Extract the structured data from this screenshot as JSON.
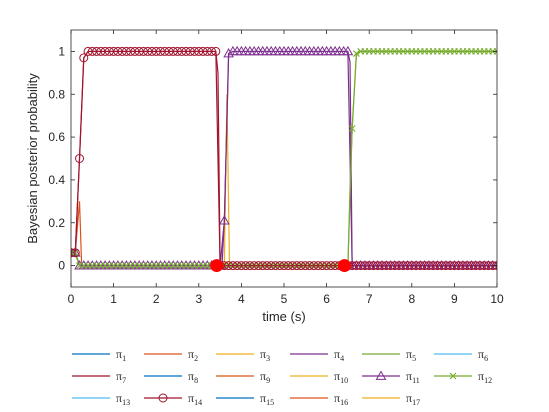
{
  "chart_data": {
    "type": "line",
    "xlabel": "time (s)",
    "ylabel": "Bayesian posterior probability",
    "xlim": [
      0,
      10
    ],
    "ylim": [
      -0.1,
      1.1
    ],
    "xticks": [
      0,
      1,
      2,
      3,
      4,
      5,
      6,
      7,
      8,
      9,
      10
    ],
    "yticks": [
      0,
      0.2,
      0.4,
      0.6,
      0.8,
      1
    ],
    "ytick_labels": [
      "0",
      "0.2",
      "0.4",
      "0.6",
      "0.8",
      "1"
    ],
    "grid": false,
    "legend": {
      "placement": "bottom",
      "columns": 6
    },
    "switch_markers": [
      {
        "x": 3.42,
        "y": 0,
        "color": "#ff0000"
      },
      {
        "x": 6.42,
        "y": 0,
        "color": "#ff0000"
      }
    ],
    "series": [
      {
        "name": "π_1",
        "color": "#0072BD",
        "marker": "none",
        "points": [
          [
            0,
            0.06
          ],
          [
            0.1,
            0.06
          ],
          [
            0.2,
            0
          ],
          [
            10,
            0
          ]
        ]
      },
      {
        "name": "π_2",
        "color": "#D95319",
        "marker": "none",
        "points": [
          [
            0,
            0.06
          ],
          [
            0.1,
            0.06
          ],
          [
            0.2,
            0.3
          ],
          [
            0.25,
            0
          ],
          [
            10,
            0
          ]
        ]
      },
      {
        "name": "π_3",
        "color": "#EDB120",
        "marker": "none",
        "points": [
          [
            0,
            0.06
          ],
          [
            0.1,
            0.06
          ],
          [
            0.2,
            0
          ],
          [
            3.6,
            0
          ],
          [
            3.66,
            0.8
          ],
          [
            3.72,
            0
          ],
          [
            10,
            0
          ]
        ]
      },
      {
        "name": "π_4",
        "color": "#7E2F8E",
        "marker": "none",
        "points": [
          [
            0,
            0.06
          ],
          [
            0.1,
            0.06
          ],
          [
            0.2,
            0
          ],
          [
            3.5,
            0
          ],
          [
            3.55,
            0.02
          ],
          [
            3.6,
            0.21
          ],
          [
            3.7,
            0.99
          ],
          [
            3.8,
            1
          ],
          [
            6.5,
            1
          ],
          [
            6.55,
            0.95
          ],
          [
            6.6,
            0
          ],
          [
            10,
            0
          ]
        ]
      },
      {
        "name": "π_5",
        "color": "#77AC30",
        "marker": "none",
        "points": [
          [
            0,
            0.06
          ],
          [
            0.1,
            0.06
          ],
          [
            0.2,
            0
          ],
          [
            6.5,
            0
          ],
          [
            6.55,
            0.36
          ],
          [
            6.6,
            0.64
          ],
          [
            6.7,
            0.99
          ],
          [
            6.8,
            1
          ],
          [
            10,
            1
          ]
        ]
      },
      {
        "name": "π_6",
        "color": "#4DBEEE",
        "marker": "none",
        "points": [
          [
            0,
            0.06
          ],
          [
            0.1,
            0.06
          ],
          [
            0.2,
            0
          ],
          [
            10,
            0
          ]
        ]
      },
      {
        "name": "π_7",
        "color": "#A2142F",
        "marker": "none",
        "points": [
          [
            0,
            0.06
          ],
          [
            0.1,
            0.06
          ],
          [
            0.2,
            0.5
          ],
          [
            0.3,
            0.97
          ],
          [
            0.4,
            1
          ],
          [
            3.4,
            1
          ],
          [
            3.45,
            0.9
          ],
          [
            3.5,
            0
          ],
          [
            10,
            0
          ]
        ]
      },
      {
        "name": "π_8",
        "color": "#0072BD",
        "marker": "none",
        "points": [
          [
            0,
            0.06
          ],
          [
            0.1,
            0.06
          ],
          [
            0.2,
            0
          ],
          [
            10,
            0
          ]
        ]
      },
      {
        "name": "π_9",
        "color": "#D95319",
        "marker": "none",
        "points": [
          [
            0,
            0.06
          ],
          [
            0.1,
            0.06
          ],
          [
            0.2,
            0
          ],
          [
            10,
            0
          ]
        ]
      },
      {
        "name": "π_10",
        "color": "#EDB120",
        "marker": "none",
        "points": [
          [
            0,
            0.06
          ],
          [
            0.1,
            0.06
          ],
          [
            0.2,
            0
          ],
          [
            10,
            0
          ]
        ]
      },
      {
        "name": "π_11",
        "color": "#7E2F8E",
        "marker": "triangle",
        "points": [
          [
            0,
            0.06
          ],
          [
            0.1,
            0.06
          ],
          [
            0.2,
            0
          ],
          [
            3.5,
            0
          ],
          [
            3.6,
            0.21
          ],
          [
            3.7,
            0.99
          ],
          [
            3.8,
            1
          ],
          [
            6.5,
            1
          ],
          [
            6.6,
            0
          ],
          [
            10,
            0
          ]
        ]
      },
      {
        "name": "π_12",
        "color": "#77AC30",
        "marker": "x",
        "points": [
          [
            0,
            0.06
          ],
          [
            0.1,
            0.06
          ],
          [
            0.2,
            0
          ],
          [
            6.5,
            0
          ],
          [
            6.6,
            0.64
          ],
          [
            6.7,
            0.99
          ],
          [
            6.8,
            1
          ],
          [
            10,
            1
          ]
        ]
      },
      {
        "name": "π_13",
        "color": "#4DBEEE",
        "marker": "none",
        "points": [
          [
            0,
            0.06
          ],
          [
            0.1,
            0.06
          ],
          [
            0.2,
            0
          ],
          [
            10,
            0
          ]
        ]
      },
      {
        "name": "π_14",
        "color": "#A2142F",
        "marker": "circle",
        "points": [
          [
            0,
            0.06
          ],
          [
            0.1,
            0.06
          ],
          [
            0.2,
            0.5
          ],
          [
            0.3,
            0.97
          ],
          [
            0.4,
            1
          ],
          [
            3.4,
            1
          ],
          [
            3.5,
            0
          ],
          [
            10,
            0
          ]
        ]
      },
      {
        "name": "π_15",
        "color": "#0072BD",
        "marker": "none",
        "points": [
          [
            0,
            0.06
          ],
          [
            0.1,
            0.06
          ],
          [
            0.2,
            0
          ],
          [
            10,
            0
          ]
        ]
      },
      {
        "name": "π_16",
        "color": "#D95319",
        "marker": "none",
        "points": [
          [
            0,
            0.06
          ],
          [
            0.1,
            0.06
          ],
          [
            0.2,
            0
          ],
          [
            10,
            0
          ]
        ]
      },
      {
        "name": "π_17",
        "color": "#EDB120",
        "marker": "none",
        "points": [
          [
            0,
            0.06
          ],
          [
            0.1,
            0.06
          ],
          [
            0.2,
            0
          ],
          [
            10,
            0
          ]
        ]
      }
    ]
  }
}
